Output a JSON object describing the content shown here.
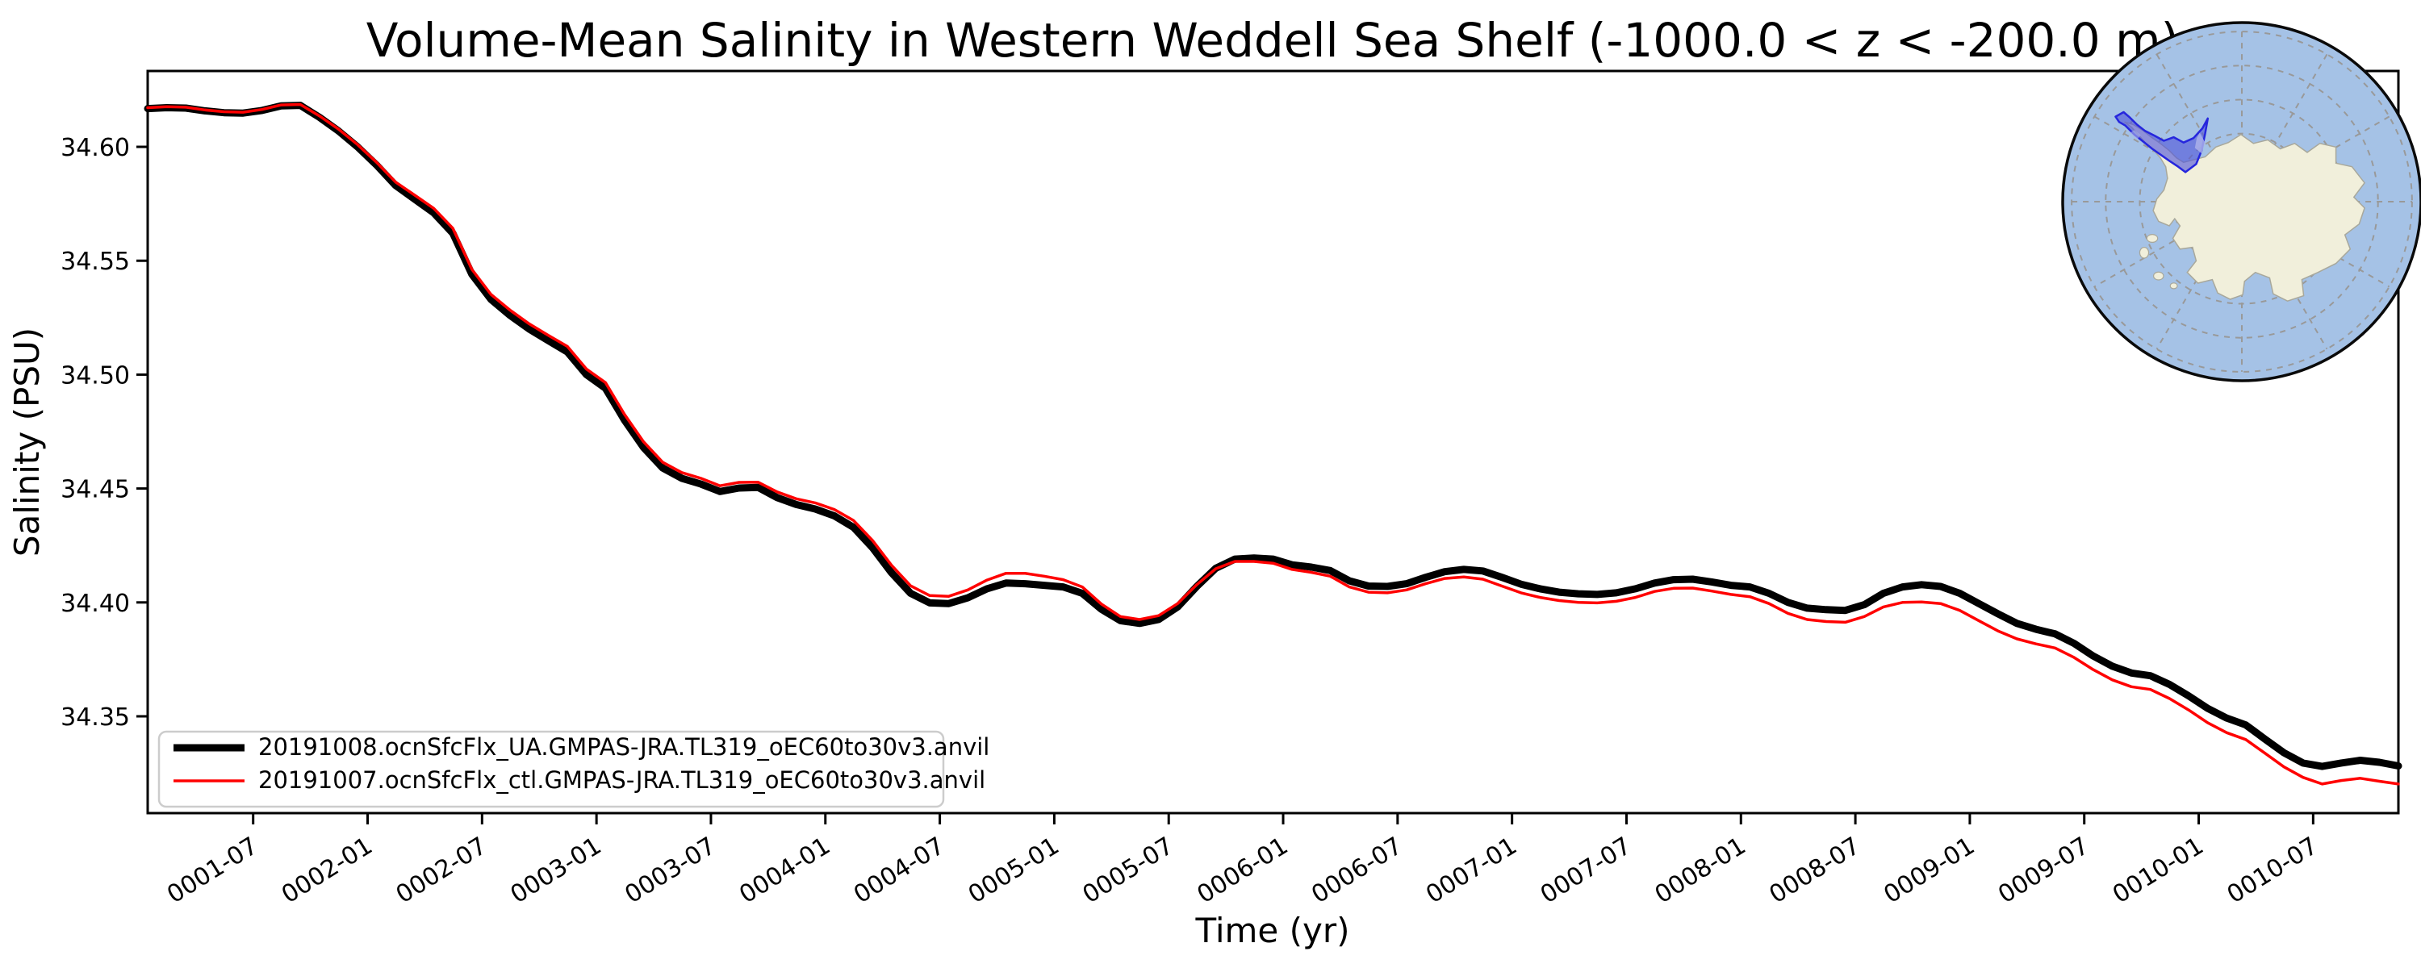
{
  "figure": {
    "title": "Volume-Mean Salinity in Western Weddell Sea Shelf (-1000.0 < z < -200.0 m)",
    "xlabel": "Time (yr)",
    "ylabel": "Salinity (PSU)",
    "background_color": "#ffffff",
    "axes_color": "#000000"
  },
  "chart_data": {
    "type": "line",
    "title": "Volume-Mean Salinity in Western Weddell Sea Shelf (-1000.0 < z < -200.0 m)",
    "xlabel": "Time (yr)",
    "ylabel": "Salinity (PSU)",
    "grid": false,
    "legend_position": "lower left",
    "ylim": [
      34.3075,
      34.6333
    ],
    "y_tick_labels": [
      "34.60",
      "34.55",
      "34.50",
      "34.45",
      "34.40",
      "34.35"
    ],
    "y_tick_values": [
      34.6,
      34.55,
      34.5,
      34.45,
      34.4,
      34.35
    ],
    "x_tick_labels": [
      "0001-07",
      "0002-01",
      "0002-07",
      "0003-01",
      "0003-07",
      "0004-01",
      "0004-07",
      "0005-01",
      "0005-07",
      "0006-01",
      "0006-07",
      "0007-01",
      "0007-07",
      "0008-01",
      "0008-07",
      "0009-01",
      "0009-07",
      "0010-01",
      "0010-07"
    ],
    "x": [
      "0001-02",
      "0001-03",
      "0001-04",
      "0001-05",
      "0001-06",
      "0001-07",
      "0001-08",
      "0001-09",
      "0001-10",
      "0001-11",
      "0001-12",
      "0002-01",
      "0002-02",
      "0002-03",
      "0002-04",
      "0002-05",
      "0002-06",
      "0002-07",
      "0002-08",
      "0002-09",
      "0002-10",
      "0002-11",
      "0002-12",
      "0003-01",
      "0003-02",
      "0003-03",
      "0003-04",
      "0003-05",
      "0003-06",
      "0003-07",
      "0003-08",
      "0003-09",
      "0003-10",
      "0003-11",
      "0003-12",
      "0004-01",
      "0004-02",
      "0004-03",
      "0004-04",
      "0004-05",
      "0004-06",
      "0004-07",
      "0004-08",
      "0004-09",
      "0004-10",
      "0004-11",
      "0004-12",
      "0005-01",
      "0005-02",
      "0005-03",
      "0005-04",
      "0005-05",
      "0005-06",
      "0005-07",
      "0005-08",
      "0005-09",
      "0005-10",
      "0005-11",
      "0005-12",
      "0006-01",
      "0006-02",
      "0006-03",
      "0006-04",
      "0006-05",
      "0006-06",
      "0006-07",
      "0006-08",
      "0006-09",
      "0006-10",
      "0006-11",
      "0006-12",
      "0007-01",
      "0007-02",
      "0007-03",
      "0007-04",
      "0007-05",
      "0007-06",
      "0007-07",
      "0007-08",
      "0007-09",
      "0007-10",
      "0007-11",
      "0007-12",
      "0008-01",
      "0008-02",
      "0008-03",
      "0008-04",
      "0008-05",
      "0008-06",
      "0008-07",
      "0008-08",
      "0008-09",
      "0008-10",
      "0008-11",
      "0008-12",
      "0009-01",
      "0009-02",
      "0009-03",
      "0009-04",
      "0009-05",
      "0009-06",
      "0009-07",
      "0009-08",
      "0009-09",
      "0009-10",
      "0009-11",
      "0009-12",
      "0010-01",
      "0010-02",
      "0010-03",
      "0010-04",
      "0010-05",
      "0010-06",
      "0010-07",
      "0010-08",
      "0010-09",
      "0010-10",
      "0010-11",
      "0010-12"
    ],
    "series": [
      {
        "name": "20191008.ocnSfcFlx_UA.GMPAS-JRA.TL319_oEC60to30v3.anvil",
        "color": "#000000",
        "line_width": 9,
        "values": [
          34.6168,
          34.6172,
          34.617,
          34.6158,
          34.615,
          34.6148,
          34.616,
          34.618,
          34.6182,
          34.613,
          34.607,
          34.6,
          34.592,
          34.583,
          34.577,
          34.571,
          34.562,
          34.544,
          34.533,
          34.526,
          34.52,
          34.515,
          34.51,
          34.5,
          34.494,
          34.48,
          34.468,
          34.459,
          34.4545,
          34.452,
          34.4487,
          34.4502,
          34.4505,
          34.446,
          34.443,
          34.441,
          34.438,
          34.433,
          34.424,
          34.413,
          34.404,
          34.3998,
          34.3995,
          34.402,
          34.406,
          34.4085,
          34.4082,
          34.4075,
          34.4068,
          34.404,
          34.397,
          34.392,
          34.3908,
          34.3925,
          34.398,
          34.407,
          34.415,
          34.419,
          34.4195,
          34.419,
          34.4165,
          34.4155,
          34.414,
          34.4095,
          34.4072,
          34.407,
          34.4082,
          34.411,
          34.4135,
          34.4145,
          34.4138,
          34.411,
          34.408,
          34.406,
          34.4045,
          34.4038,
          34.4035,
          34.4042,
          34.406,
          34.4085,
          34.41,
          34.4102,
          34.409,
          34.4075,
          34.4068,
          34.404,
          34.4,
          34.3975,
          34.3968,
          34.3965,
          34.399,
          34.404,
          34.4068,
          34.4078,
          34.407,
          34.404,
          34.3995,
          34.395,
          34.3908,
          34.3882,
          34.3862,
          34.382,
          34.3765,
          34.372,
          34.369,
          34.3678,
          34.364,
          34.359,
          34.3535,
          34.3492,
          34.3462,
          34.34,
          34.334,
          34.3295,
          34.328,
          34.3295,
          34.3307,
          34.3298,
          34.3282
        ]
      },
      {
        "name": "20191007.ocnSfcFlx_ctl.GMPAS-JRA.TL319_oEC60to30v3.anvil",
        "color": "#ff0000",
        "line_width": 3.5,
        "values": [
          34.6172,
          34.6176,
          34.6174,
          34.6162,
          34.6154,
          34.6152,
          34.6164,
          34.6184,
          34.6186,
          34.6136,
          34.6078,
          34.601,
          34.5932,
          34.5845,
          34.5788,
          34.573,
          34.5642,
          34.5462,
          34.5352,
          34.5283,
          34.5223,
          34.5173,
          34.5124,
          34.5025,
          34.4965,
          34.4825,
          34.4705,
          34.4615,
          34.457,
          34.4545,
          34.4512,
          34.4527,
          34.4528,
          34.4485,
          34.4455,
          34.4437,
          34.4408,
          34.436,
          34.4272,
          34.4163,
          34.4073,
          34.403,
          34.4027,
          34.4055,
          34.4098,
          34.4128,
          34.4128,
          34.4115,
          34.41,
          34.4068,
          34.3993,
          34.3938,
          34.3925,
          34.3942,
          34.3995,
          34.4078,
          34.4148,
          34.418,
          34.418,
          34.4172,
          34.4145,
          34.4132,
          34.4115,
          34.4068,
          34.4045,
          34.4042,
          34.4055,
          34.4082,
          34.4105,
          34.4112,
          34.4102,
          34.4072,
          34.4042,
          34.4022,
          34.4008,
          34.4,
          34.3998,
          34.4005,
          34.4022,
          34.4048,
          34.4062,
          34.4063,
          34.405,
          34.4035,
          34.4025,
          34.3995,
          34.3952,
          34.3925,
          34.3916,
          34.3913,
          34.3938,
          34.398,
          34.4,
          34.4002,
          34.3995,
          34.3965,
          34.392,
          34.3875,
          34.384,
          34.3818,
          34.38,
          34.3758,
          34.3705,
          34.366,
          34.363,
          34.3618,
          34.3578,
          34.3528,
          34.3472,
          34.3428,
          34.3398,
          34.3338,
          34.3278,
          34.3232,
          34.3203,
          34.3218,
          34.3228,
          34.3215,
          34.3203
        ]
      }
    ]
  },
  "legend": {
    "entries": [
      {
        "label": "20191008.ocnSfcFlx_UA.GMPAS-JRA.TL319_oEC60to30v3.anvil",
        "color": "#000000"
      },
      {
        "label": "20191007.ocnSfcFlx_ctl.GMPAS-JRA.TL319_oEC60to30v3.anvil",
        "color": "#ff0000"
      }
    ],
    "border_color": "#cccccc",
    "background_color": "#ffffff"
  },
  "inset_map": {
    "description": "South polar stereographic map of Antarctica with highlighted Western Weddell Sea Shelf region",
    "ocean_color": "#a5c2e6",
    "land_color": "#f1efdb",
    "coast_color": "#a8a89c",
    "graticule_color": "#999999",
    "border_color": "#0a0a0a",
    "region_fill": "#5055d8",
    "region_outline": "#2626dd",
    "region_patch_color": "#aab0ea"
  }
}
